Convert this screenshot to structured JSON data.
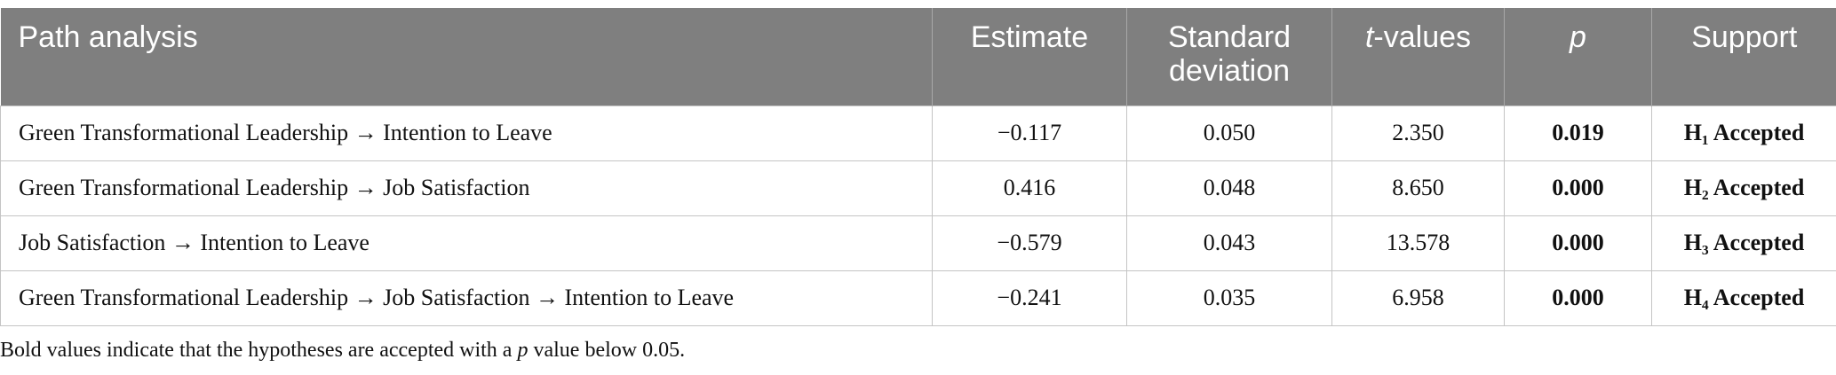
{
  "table": {
    "columns": [
      "Path analysis",
      "Estimate",
      "Standard deviation",
      [
        "t",
        "-values"
      ],
      "p",
      "Support"
    ],
    "rows": [
      [
        "Green Transformational Leadership → Intention to Leave",
        "−0.117",
        "0.050",
        "2.350",
        "0.019",
        "H₁ Accepted"
      ],
      [
        "Green Transformational Leadership → Job Satisfaction",
        "0.416",
        "0.048",
        "8.650",
        "0.000",
        "H₂ Accepted"
      ],
      [
        "Job Satisfaction → Intention to Leave",
        "−0.579",
        "0.043",
        "13.578",
        "0.000",
        "H₃ Accepted"
      ],
      [
        "Green Transformational Leadership → Job Satisfaction → Intention to Leave",
        "−0.241",
        "0.035",
        "6.958",
        "0.000",
        "H₄ Accepted"
      ]
    ]
  },
  "footnote": [
    "Bold values indicate that the hypotheses are accepted with a ",
    "p",
    " value below 0.05."
  ]
}
